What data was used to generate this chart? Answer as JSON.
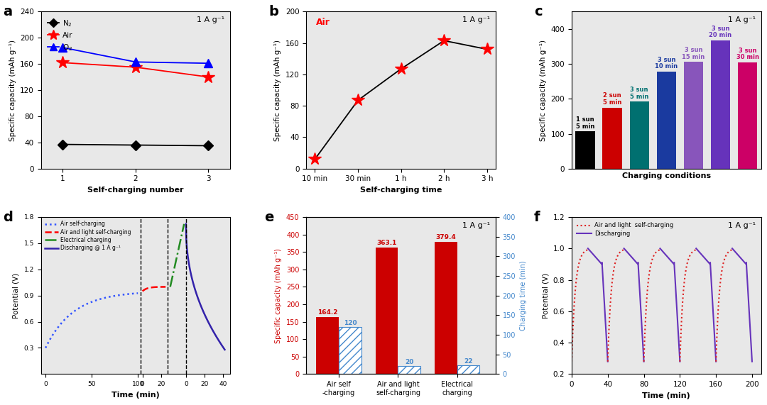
{
  "panel_a": {
    "x": [
      1,
      2,
      3
    ],
    "n2": [
      37,
      36,
      35
    ],
    "air": [
      162,
      155,
      140
    ],
    "o2": [
      185,
      163,
      161
    ],
    "ylabel": "Specific capacity (mAh g⁻¹)",
    "xlabel": "Self-charging number",
    "annotation": "1 A g⁻¹",
    "ylim": [
      0,
      240
    ],
    "yticks": [
      0,
      40,
      80,
      120,
      160,
      200,
      240
    ],
    "bg_color": "#e8e8e8"
  },
  "panel_b": {
    "x_labels": [
      "10 min",
      "30 min",
      "1 h",
      "2 h",
      "3 h"
    ],
    "x_vals": [
      0,
      1,
      2,
      3,
      4
    ],
    "y": [
      12,
      87,
      127,
      163,
      152
    ],
    "ylabel": "Specific capacity (mAh g⁻¹)",
    "xlabel": "Self-charging time",
    "annotation": "1 A g⁻¹",
    "air_label": "Air",
    "ylim": [
      0,
      200
    ],
    "yticks": [
      0,
      40,
      80,
      120,
      160,
      200
    ],
    "bg_color": "#e8e8e8"
  },
  "panel_c": {
    "bars": [
      107,
      175,
      192,
      278,
      306,
      368,
      305
    ],
    "colors": [
      "#000000",
      "#cc0000",
      "#007070",
      "#1a3a9f",
      "#8855bb",
      "#6633bb",
      "#cc0066"
    ],
    "labels": [
      "1 sun\n5 min",
      "2 sun\n5 min",
      "3 sun\n5 min",
      "3 sun\n10 min",
      "3 sun\n15 min",
      "3 sun\n20 min",
      "3 sun\n30 min"
    ],
    "label_colors": [
      "#000000",
      "#cc0000",
      "#007070",
      "#1a3a9f",
      "#8855bb",
      "#6633bb",
      "#cc0066"
    ],
    "ylabel": "Specific capacity (mAh g⁻¹)",
    "xlabel": "Charging conditions",
    "annotation": "1 A g⁻¹",
    "ylim": [
      0,
      450
    ],
    "yticks": [
      0,
      100,
      200,
      300,
      400
    ],
    "bg_color": "#e8e8e8"
  },
  "panel_d": {
    "ylabel": "Potential (V)",
    "xlabel": "Time (min)",
    "ylim": [
      0.0,
      1.8
    ],
    "yticks": [
      0.3,
      0.6,
      0.9,
      1.2,
      1.5,
      1.8
    ],
    "legend": [
      "Air self-charging",
      "Air and light self-charging",
      "Electrical charging",
      "Discharging @ 1 A g⁻¹"
    ],
    "bg_color": "#e8e8e8"
  },
  "panel_e": {
    "bar_values": [
      164.2,
      363.1,
      379.4
    ],
    "hatch_values": [
      120,
      20,
      22
    ],
    "categories": [
      "Air self\n-charging",
      "Air and light\nself-charging",
      "Electrical\ncharging"
    ],
    "annotation": "1 A g⁻¹",
    "ylim_left": [
      0,
      450
    ],
    "ylim_right": [
      0,
      400
    ],
    "yticks_left": [
      0,
      50,
      100,
      150,
      200,
      250,
      300,
      350,
      400,
      450
    ],
    "yticks_right": [
      0,
      50,
      100,
      150,
      200,
      250,
      300,
      350,
      400
    ],
    "ylabel_left": "Specific capacity (mAh g⁻¹)",
    "ylabel_right": "Charging time (min)",
    "bg_color": "#e8e8e8"
  },
  "panel_f": {
    "ylabel": "Potential (V)",
    "xlabel": "Time (min)",
    "xlim": [
      0,
      210
    ],
    "ylim": [
      0.2,
      1.2
    ],
    "yticks": [
      0.2,
      0.4,
      0.6,
      0.8,
      1.0,
      1.2
    ],
    "xticks": [
      0,
      40,
      80,
      120,
      160,
      200
    ],
    "annotation": "1 A g⁻¹",
    "legend": [
      "Air and light  self-charging",
      "Discharging"
    ],
    "bg_color": "#e8e8e8"
  }
}
